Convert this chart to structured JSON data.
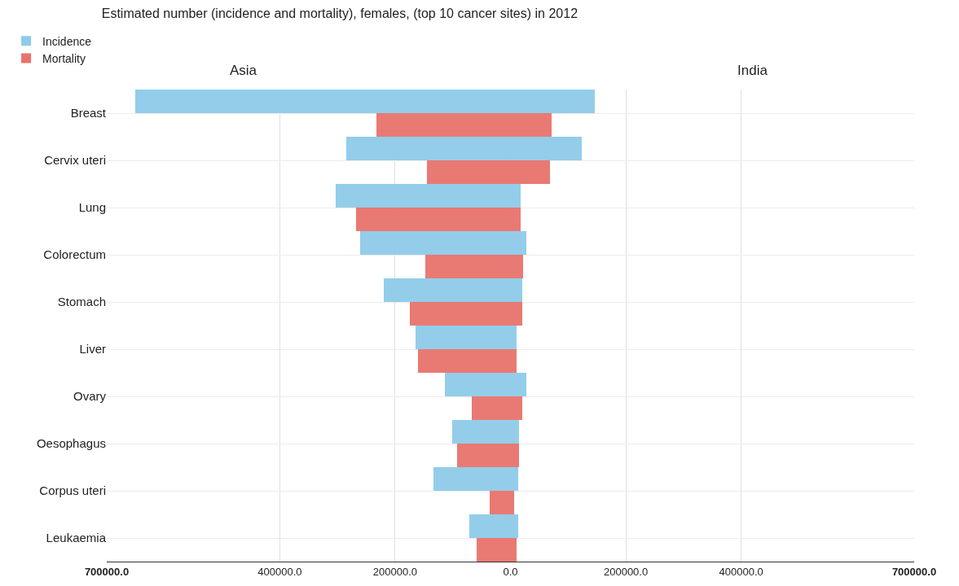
{
  "chart_data": {
    "type": "bar",
    "orientation": "horizontal",
    "title": "Estimated number (incidence and mortality), females, (top 10 cancer sites) in 2012",
    "annotations": [
      "Asia",
      "India"
    ],
    "categories": [
      "Breast",
      "Cervix uteri",
      "Lung",
      "Colorectum",
      "Stomach",
      "Liver",
      "Ovary",
      "Oesophagus",
      "Corpus uteri",
      "Leukaemia"
    ],
    "series": [
      {
        "name": "Incidence",
        "color": "#8ecae9",
        "values": [
          -651000,
          -285000,
          -303000,
          -261000,
          -220000,
          -164000,
          -114000,
          -101000,
          -133000,
          -72000
        ]
      },
      {
        "name": "Mortality",
        "color": "#e8736c",
        "values": [
          -232000,
          -145000,
          -268000,
          -147000,
          -175000,
          -160000,
          -67000,
          -93000,
          -36000,
          -59000
        ]
      },
      {
        "color": "#8ecae9",
        "values": [
          146000,
          123000,
          18000,
          28000,
          21000,
          11000,
          28000,
          15000,
          14000,
          14000
        ]
      },
      {
        "color": "#e8736c",
        "values": [
          72000,
          69000,
          17000,
          22000,
          20000,
          11000,
          21000,
          15000,
          6000,
          11000
        ]
      }
    ],
    "xlim": [
      -700000,
      700000
    ],
    "xticks": [
      {
        "value": -700000,
        "label": "700000.0"
      },
      {
        "value": -400000,
        "label": "400000.0"
      },
      {
        "value": -200000,
        "label": "200000.0"
      },
      {
        "value": 0,
        "label": "0.0"
      },
      {
        "value": 200000,
        "label": "200000.0"
      },
      {
        "value": 400000,
        "label": "400000.0"
      },
      {
        "value": 700000,
        "label": "700000.0"
      }
    ],
    "grid": true,
    "legend": "top left"
  }
}
